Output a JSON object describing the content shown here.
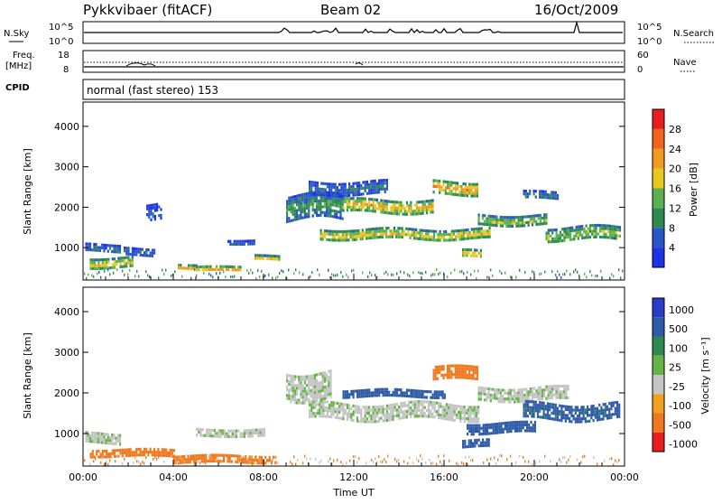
{
  "header": {
    "title": "Pykkvibaer (fitACF)",
    "beam": "Beam 02",
    "date": "16/Oct/2009"
  },
  "aux_panels": {
    "nsky_label": "N.Sky",
    "nsky_ticks": [
      "10^5",
      "10^0"
    ],
    "nsearch_label": "N.Search",
    "nsearch_ticks": [
      "10^5",
      "10^0"
    ],
    "freq_label_1": "Freq.",
    "freq_label_2": "[MHz]",
    "freq_ticks": [
      "18",
      "8"
    ],
    "nave_label": "Nave",
    "nave_ticks": [
      "60",
      "0"
    ],
    "cpid_label": "CPID",
    "cpid_value": "normal (fast stereo) 153"
  },
  "chart_data": [
    {
      "type": "heatmap",
      "name": "power-panel",
      "ylabel": "Slant Range [km]",
      "y_ticks": [
        "1000",
        "2000",
        "3000",
        "4000"
      ],
      "ylim": [
        200,
        4600
      ],
      "xlim": [
        0,
        24
      ],
      "colorbar": {
        "label": "Power [dB]",
        "ticks": [
          "4",
          "8",
          "12",
          "16",
          "20",
          "24",
          "28"
        ],
        "range": [
          0,
          32
        ]
      },
      "bands": [
        {
          "t0": 0.1,
          "t1": 1.6,
          "r": 1000,
          "w": 200,
          "v": 8
        },
        {
          "t0": 0.3,
          "t1": 2.2,
          "r": 650,
          "w": 250,
          "v": 20
        },
        {
          "t0": 1.8,
          "t1": 3.2,
          "r": 900,
          "w": 200,
          "v": 8
        },
        {
          "t0": 2.8,
          "t1": 3.5,
          "r": 1900,
          "w": 400,
          "v": 6
        },
        {
          "t0": 4.2,
          "t1": 5.0,
          "r": 550,
          "w": 120,
          "v": 24
        },
        {
          "t0": 5.0,
          "t1": 7.0,
          "r": 500,
          "w": 100,
          "v": 26
        },
        {
          "t0": 6.4,
          "t1": 7.6,
          "r": 1150,
          "w": 120,
          "v": 8
        },
        {
          "t0": 7.6,
          "t1": 8.7,
          "r": 750,
          "w": 140,
          "v": 18
        },
        {
          "t0": 9.0,
          "t1": 11.5,
          "r": 2000,
          "w": 600,
          "v": 12
        },
        {
          "t0": 10.0,
          "t1": 13.5,
          "r": 2500,
          "w": 300,
          "v": 8
        },
        {
          "t0": 11.5,
          "t1": 15.5,
          "r": 2050,
          "w": 300,
          "v": 22
        },
        {
          "t0": 15.5,
          "t1": 17.5,
          "r": 2500,
          "w": 300,
          "v": 24
        },
        {
          "t0": 10.5,
          "t1": 18.0,
          "r": 1350,
          "w": 250,
          "v": 20
        },
        {
          "t0": 17.5,
          "t1": 20.5,
          "r": 1700,
          "w": 250,
          "v": 16
        },
        {
          "t0": 19.5,
          "t1": 21.0,
          "r": 2300,
          "w": 200,
          "v": 10
        },
        {
          "t0": 20.5,
          "t1": 23.8,
          "r": 1350,
          "w": 350,
          "v": 16
        },
        {
          "t0": 16.8,
          "t1": 17.6,
          "r": 850,
          "w": 200,
          "v": 22
        }
      ]
    },
    {
      "type": "heatmap",
      "name": "velocity-panel",
      "ylabel": "Slant Range [km]",
      "xlabel": "Time UT",
      "x_ticks": [
        "00:00",
        "04:00",
        "08:00",
        "12:00",
        "16:00",
        "20:00",
        "00:00"
      ],
      "y_ticks": [
        "1000",
        "2000",
        "3000",
        "4000"
      ],
      "ylim": [
        200,
        4600
      ],
      "xlim": [
        0,
        24
      ],
      "colorbar": {
        "label": "Velocity [m s⁻¹]",
        "ticks": [
          "1000",
          "500",
          "100",
          "25",
          "-25",
          "-100",
          "-500",
          "-1000"
        ]
      },
      "bands": [
        {
          "t0": 0.1,
          "t1": 1.6,
          "r": 900,
          "w": 250,
          "v": 0
        },
        {
          "t0": 0.3,
          "t1": 4.0,
          "r": 550,
          "w": 150,
          "v": -200
        },
        {
          "t0": 4.0,
          "t1": 8.5,
          "r": 400,
          "w": 150,
          "v": -150
        },
        {
          "t0": 5.0,
          "t1": 8.0,
          "r": 1050,
          "w": 150,
          "v": 0
        },
        {
          "t0": 9.0,
          "t1": 11.0,
          "r": 2200,
          "w": 700,
          "v": 0
        },
        {
          "t0": 10.0,
          "t1": 17.5,
          "r": 1550,
          "w": 400,
          "v": 0
        },
        {
          "t0": 11.5,
          "t1": 16.0,
          "r": 2000,
          "w": 180,
          "v": 300
        },
        {
          "t0": 15.5,
          "t1": 17.5,
          "r": 2500,
          "w": 300,
          "v": -300
        },
        {
          "t0": 17.0,
          "t1": 20.0,
          "r": 1150,
          "w": 250,
          "v": 300
        },
        {
          "t0": 16.8,
          "t1": 18.0,
          "r": 750,
          "w": 200,
          "v": 300
        },
        {
          "t0": 17.5,
          "t1": 21.5,
          "r": 2000,
          "w": 300,
          "v": 0
        },
        {
          "t0": 19.5,
          "t1": 23.8,
          "r": 1550,
          "w": 400,
          "v": 150
        }
      ]
    }
  ],
  "colors": {
    "velocity_ground_scatter": "#c4c4c4"
  }
}
